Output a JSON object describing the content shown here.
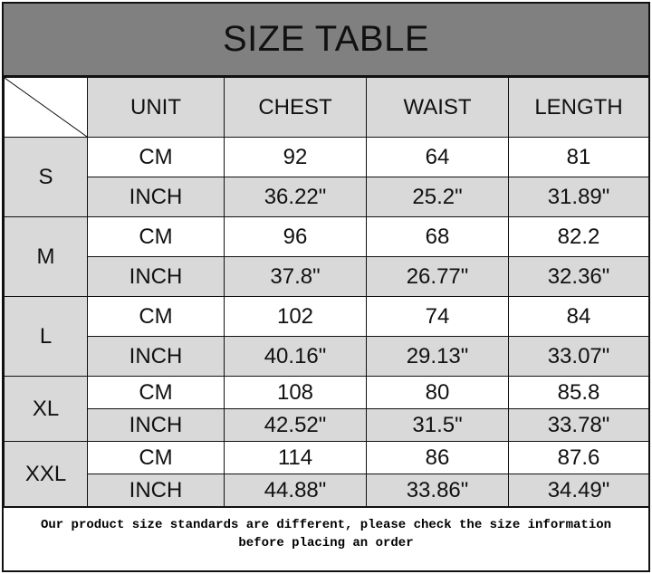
{
  "title": "SIZE TABLE",
  "headers": [
    "UNIT",
    "CHEST",
    "WAIST",
    "LENGTH"
  ],
  "sizes": [
    {
      "size": "S",
      "cm": {
        "unit": "CM",
        "chest": "92",
        "waist": "64",
        "length": "81"
      },
      "inch": {
        "unit": "INCH",
        "chest": "36.22\"",
        "waist": "25.2\"",
        "length": "31.89\""
      }
    },
    {
      "size": "M",
      "cm": {
        "unit": "CM",
        "chest": "96",
        "waist": "68",
        "length": "82.2"
      },
      "inch": {
        "unit": "INCH",
        "chest": "37.8\"",
        "waist": "26.77\"",
        "length": "32.36\""
      }
    },
    {
      "size": "L",
      "cm": {
        "unit": "CM",
        "chest": "102",
        "waist": "74",
        "length": "84"
      },
      "inch": {
        "unit": "INCH",
        "chest": "40.16\"",
        "waist": "29.13\"",
        "length": "33.07\""
      }
    },
    {
      "size": "XL",
      "cm": {
        "unit": "CM",
        "chest": "108",
        "waist": "80",
        "length": "85.8"
      },
      "inch": {
        "unit": "INCH",
        "chest": "42.52\"",
        "waist": "31.5\"",
        "length": "33.78\""
      }
    },
    {
      "size": "XXL",
      "cm": {
        "unit": "CM",
        "chest": "114",
        "waist": "86",
        "length": "87.6"
      },
      "inch": {
        "unit": "INCH",
        "chest": "44.88\"",
        "waist": "33.86\"",
        "length": "34.49\""
      }
    }
  ],
  "note_line1": "Our product size standards are different, please check the size information",
  "note_line2": "before placing an order",
  "colors": {
    "title_bg": "#808080",
    "cell_gray": "#d9d9d9",
    "border": "#111111"
  }
}
